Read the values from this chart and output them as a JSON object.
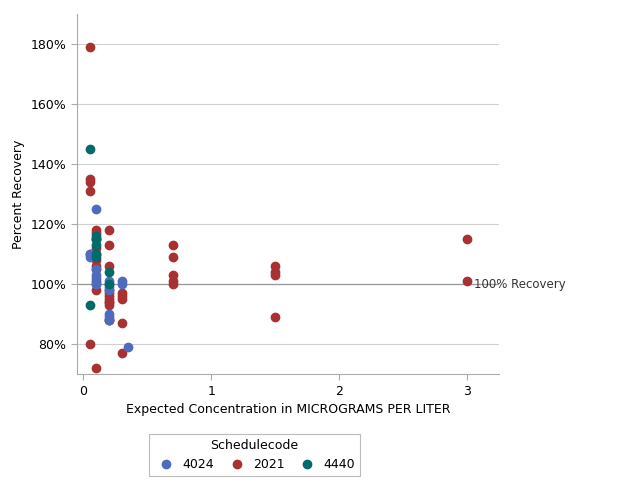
{
  "xlabel": "Expected Concentration in MICROGRAMS PER LITER",
  "ylabel": "Percent Recovery",
  "xlim": [
    -0.05,
    3.25
  ],
  "ylim": [
    70,
    190
  ],
  "yticks": [
    80,
    100,
    120,
    140,
    160,
    180
  ],
  "ytick_labels": [
    "80%",
    "100%",
    "120%",
    "140%",
    "160%",
    "180%"
  ],
  "xticks": [
    0,
    1,
    2,
    3
  ],
  "xtick_labels": [
    "0",
    "1",
    "2",
    "3"
  ],
  "ref_line_y": 100,
  "ref_line_label": "100% Recovery",
  "colors": {
    "4024": "#4f6bbd",
    "2021": "#a83232",
    "4440": "#006b6b"
  },
  "series_4024": {
    "x": [
      0.05,
      0.05,
      0.1,
      0.1,
      0.1,
      0.1,
      0.1,
      0.1,
      0.1,
      0.2,
      0.2,
      0.2,
      0.2,
      0.2,
      0.2,
      0.2,
      0.3,
      0.3,
      0.35
    ],
    "y": [
      110,
      109,
      125,
      115,
      105,
      103,
      102,
      100,
      100,
      101,
      100,
      99,
      98,
      90,
      89,
      88,
      101,
      100,
      79
    ]
  },
  "series_2021": {
    "x": [
      0.05,
      0.05,
      0.05,
      0.05,
      0.05,
      0.05,
      0.1,
      0.1,
      0.1,
      0.1,
      0.1,
      0.1,
      0.1,
      0.1,
      0.1,
      0.1,
      0.1,
      0.2,
      0.2,
      0.2,
      0.2,
      0.2,
      0.2,
      0.2,
      0.2,
      0.2,
      0.2,
      0.2,
      0.2,
      0.3,
      0.3,
      0.3,
      0.3,
      0.3,
      0.7,
      0.7,
      0.7,
      0.7,
      0.7,
      1.5,
      1.5,
      1.5,
      1.5,
      3.0,
      3.0
    ],
    "y": [
      179,
      135,
      134,
      131,
      110,
      80,
      118,
      117,
      115,
      112,
      110,
      108,
      106,
      105,
      101,
      98,
      72,
      118,
      113,
      106,
      98,
      97,
      96,
      95,
      94,
      94,
      93,
      88,
      88,
      97,
      96,
      95,
      87,
      77,
      113,
      109,
      103,
      101,
      100,
      106,
      104,
      103,
      89,
      115,
      101
    ]
  },
  "series_4440": {
    "x": [
      0.05,
      0.05,
      0.1,
      0.1,
      0.1,
      0.1,
      0.1,
      0.2,
      0.2
    ],
    "y": [
      145,
      93,
      116,
      115,
      113,
      110,
      109,
      104,
      100
    ]
  },
  "background_color": "#ffffff",
  "grid_color": "#d0d0d0",
  "marker_size": 6
}
